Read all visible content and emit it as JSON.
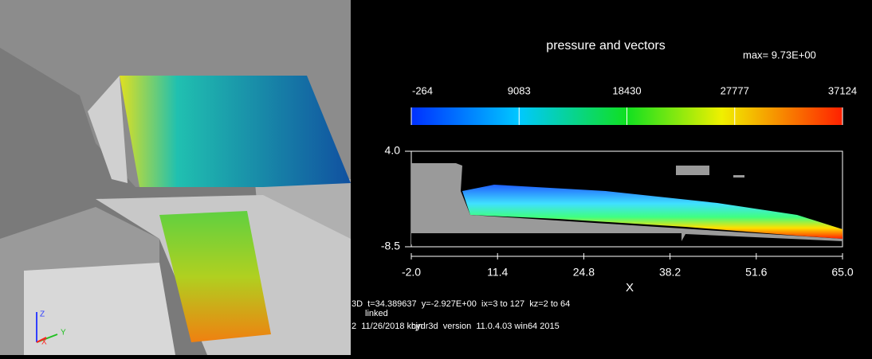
{
  "view3d": {
    "axis_labels": [
      "Z",
      "Y",
      "X"
    ]
  },
  "plot": {
    "title": "pressure and vectors",
    "max_label": "max= 9.73E+00",
    "colorbar_lim": [
      -264,
      37124
    ],
    "colorbar_ticks": [
      -264,
      9083,
      18430,
      27777,
      37124
    ],
    "xlim": [
      -2,
      65
    ],
    "xticks": [
      {
        "value": -2,
        "label": "-2.0"
      },
      11.4,
      24.8,
      38.2,
      51.6,
      {
        "value": 65,
        "label": "65.0"
      }
    ],
    "ylim": [
      -8.5,
      4
    ],
    "yticks": [
      {
        "value": -8.5,
        "label": "-8.5"
      },
      {
        "value": 4,
        "label": "4.0"
      }
    ],
    "xlabel": "X"
  },
  "footer": [
    "3D  t=34.389637  y=-2.927E+00  ix=3 to 127  kz=2 to 64",
    "linked",
    "2  11/26/2018 kcjn",
    "hydr3d  version  11.0.4.03 win64 2015"
  ]
}
